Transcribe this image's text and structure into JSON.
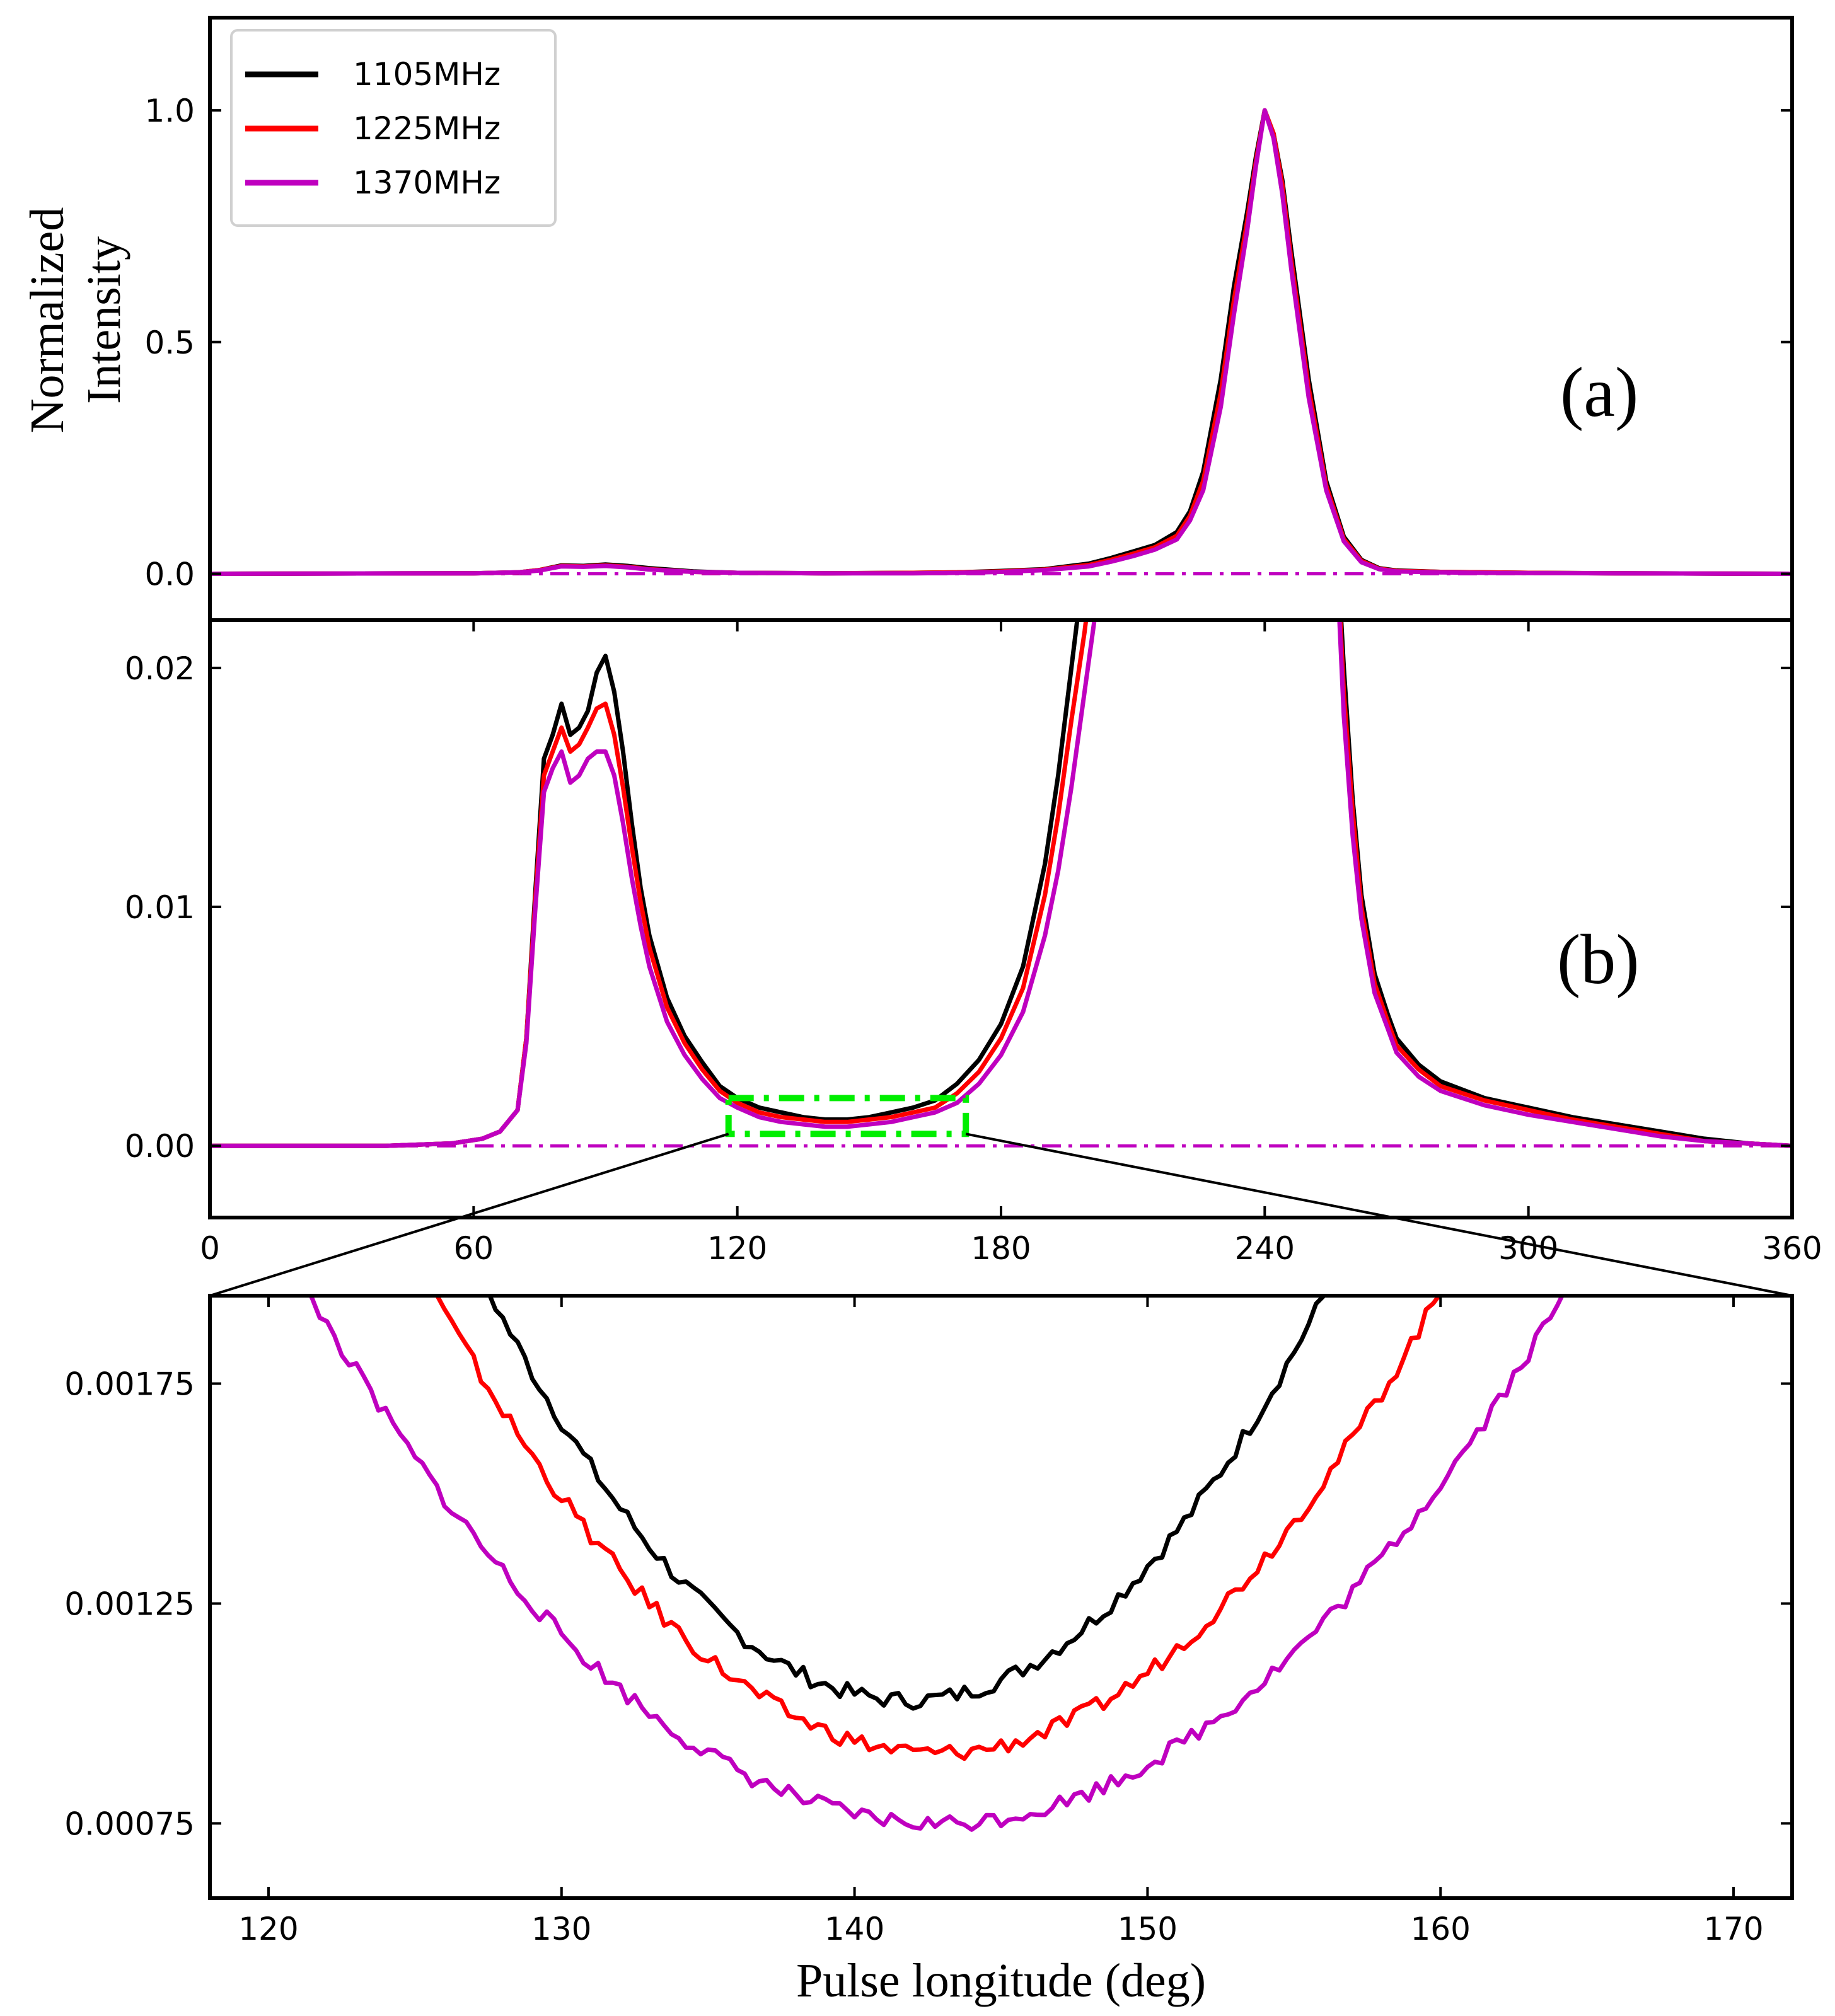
{
  "chart_data": {
    "type": "line",
    "legend": {
      "placement": "top-left",
      "entries": [
        {
          "label": "1105MHz",
          "color": "#000000"
        },
        {
          "label": "1225MHz",
          "color": "#ff0000"
        },
        {
          "label": "1370MHz",
          "color": "#bf00bf"
        }
      ]
    },
    "panels": [
      {
        "label": "(a)",
        "ylabel_line1": "Normalized",
        "ylabel_line2": "Intensity",
        "xlim": [
          0,
          360
        ],
        "ylim": [
          -0.1,
          1.2
        ],
        "yticks": [
          {
            "v": 0.0,
            "label": "0.0"
          },
          {
            "v": 0.5,
            "label": "0.5"
          },
          {
            "v": 1.0,
            "label": "1.0"
          }
        ],
        "baseline": 0.0,
        "series": [
          {
            "name": "1105MHz",
            "color": "#000000",
            "x": [
              0,
              60,
              70,
              75,
              80,
              85,
              90,
              95,
              100,
              110,
              120,
              140,
              160,
              170,
              180,
              190,
              200,
              205,
              210,
              215,
              220,
              223,
              226,
              230,
              233,
              236,
              238,
              240,
              242,
              244,
              246,
              250,
              254,
              258,
              262,
              266,
              270,
              280,
              290,
              300,
              320,
              340,
              360
            ],
            "y": [
              0,
              0.001,
              0.003,
              0.008,
              0.018,
              0.017,
              0.02,
              0.017,
              0.012,
              0.005,
              0.002,
              0.001,
              0.002,
              0.003,
              0.006,
              0.01,
              0.022,
              0.034,
              0.048,
              0.062,
              0.09,
              0.135,
              0.22,
              0.42,
              0.62,
              0.78,
              0.9,
              1.0,
              0.95,
              0.85,
              0.7,
              0.42,
              0.2,
              0.08,
              0.03,
              0.012,
              0.007,
              0.004,
              0.003,
              0.002,
              0.001,
              0.0005,
              0
            ]
          },
          {
            "name": "1225MHz",
            "color": "#ff0000",
            "x": [
              0,
              60,
              70,
              75,
              80,
              85,
              90,
              95,
              100,
              110,
              120,
              140,
              160,
              170,
              180,
              190,
              200,
              205,
              210,
              215,
              220,
              223,
              226,
              230,
              233,
              236,
              238,
              240,
              242,
              244,
              246,
              250,
              254,
              258,
              262,
              266,
              270,
              280,
              290,
              300,
              320,
              340,
              360
            ],
            "y": [
              0,
              0.001,
              0.003,
              0.008,
              0.017,
              0.016,
              0.018,
              0.015,
              0.01,
              0.004,
              0.002,
              0.001,
              0.002,
              0.003,
              0.005,
              0.009,
              0.019,
              0.03,
              0.043,
              0.057,
              0.082,
              0.125,
              0.2,
              0.39,
              0.59,
              0.76,
              0.89,
              1.0,
              0.95,
              0.84,
              0.68,
              0.4,
              0.19,
              0.075,
              0.028,
              0.011,
              0.006,
              0.004,
              0.003,
              0.002,
              0.001,
              0.0005,
              0
            ]
          },
          {
            "name": "1370MHz",
            "color": "#bf00bf",
            "x": [
              0,
              60,
              70,
              75,
              80,
              85,
              90,
              95,
              100,
              110,
              120,
              140,
              160,
              170,
              180,
              190,
              200,
              205,
              210,
              215,
              220,
              223,
              226,
              230,
              233,
              236,
              238,
              240,
              242,
              244,
              246,
              250,
              254,
              258,
              262,
              266,
              270,
              280,
              290,
              300,
              320,
              340,
              360
            ],
            "y": [
              0,
              0.001,
              0.003,
              0.007,
              0.016,
              0.015,
              0.017,
              0.014,
              0.009,
              0.004,
              0.002,
              0.001,
              0.001,
              0.002,
              0.004,
              0.008,
              0.016,
              0.026,
              0.038,
              0.052,
              0.074,
              0.115,
              0.18,
              0.36,
              0.56,
              0.74,
              0.88,
              1.0,
              0.94,
              0.82,
              0.66,
              0.38,
              0.18,
              0.07,
              0.025,
              0.01,
              0.005,
              0.003,
              0.002,
              0.0015,
              0.001,
              0.0005,
              0
            ]
          }
        ]
      },
      {
        "label": "(b)",
        "xlim": [
          0,
          360
        ],
        "ylim": [
          -0.003,
          0.022
        ],
        "yticks": [
          {
            "v": 0.0,
            "label": "0.00"
          },
          {
            "v": 0.01,
            "label": "0.01"
          },
          {
            "v": 0.02,
            "label": "0.02"
          }
        ],
        "xticks": [
          {
            "v": 0,
            "label": "0"
          },
          {
            "v": 60,
            "label": "60"
          },
          {
            "v": 120,
            "label": "120"
          },
          {
            "v": 180,
            "label": "180"
          },
          {
            "v": 240,
            "label": "240"
          },
          {
            "v": 300,
            "label": "300"
          },
          {
            "v": 360,
            "label": "360"
          }
        ],
        "baseline": 0.0,
        "zoom_box": {
          "x": [
            118,
            172
          ],
          "y": [
            0.0005,
            0.002
          ]
        },
        "series": [
          {
            "name": "1105MHz",
            "color": "#000000",
            "x": [
              0,
              40,
              55,
              62,
              66,
              70,
              72,
              74,
              76,
              78,
              80,
              82,
              84,
              86,
              88,
              90,
              92,
              94,
              96,
              98,
              100,
              104,
              108,
              112,
              116,
              120,
              125,
              130,
              135,
              140,
              145,
              150,
              155,
              160,
              165,
              170,
              175,
              180,
              185,
              190,
              193,
              196,
              199,
              202,
              255,
              258,
              260,
              262,
              265,
              268,
              270,
              275,
              280,
              290,
              300,
              310,
              320,
              330,
              340,
              350,
              360
            ],
            "y": [
              0,
              0,
              0.0001,
              0.0003,
              0.0006,
              0.0015,
              0.0045,
              0.0105,
              0.0162,
              0.0172,
              0.0185,
              0.0172,
              0.0175,
              0.0182,
              0.0198,
              0.0205,
              0.019,
              0.0165,
              0.0135,
              0.0108,
              0.0088,
              0.0062,
              0.0046,
              0.0035,
              0.0025,
              0.002,
              0.0016,
              0.0014,
              0.0012,
              0.0011,
              0.0011,
              0.0012,
              0.0014,
              0.0016,
              0.0019,
              0.0026,
              0.0036,
              0.0051,
              0.0075,
              0.0118,
              0.0155,
              0.02,
              0.0245,
              0.03,
              0.03,
              0.02,
              0.0145,
              0.0105,
              0.0072,
              0.0055,
              0.0045,
              0.0034,
              0.0027,
              0.002,
              0.0016,
              0.0012,
              0.0009,
              0.0006,
              0.0003,
              0.0001,
              0
            ]
          },
          {
            "name": "1225MHz",
            "color": "#ff0000",
            "x": [
              0,
              40,
              55,
              62,
              66,
              70,
              72,
              74,
              76,
              78,
              80,
              82,
              84,
              86,
              88,
              90,
              92,
              94,
              96,
              98,
              100,
              104,
              108,
              112,
              116,
              120,
              125,
              130,
              135,
              140,
              145,
              150,
              155,
              160,
              165,
              170,
              175,
              180,
              185,
              190,
              193,
              196,
              199,
              202,
              205,
              255,
              258,
              260,
              262,
              265,
              268,
              270,
              275,
              280,
              290,
              300,
              310,
              320,
              330,
              340,
              350,
              360
            ],
            "y": [
              0,
              0,
              0.0001,
              0.0003,
              0.0006,
              0.0015,
              0.0045,
              0.0102,
              0.0155,
              0.0165,
              0.0175,
              0.0165,
              0.0168,
              0.0175,
              0.0183,
              0.0185,
              0.0172,
              0.015,
              0.0125,
              0.0102,
              0.0083,
              0.0058,
              0.0043,
              0.0032,
              0.0023,
              0.0018,
              0.0014,
              0.0012,
              0.0011,
              0.001,
              0.001,
              0.0011,
              0.0012,
              0.0014,
              0.0016,
              0.0022,
              0.0031,
              0.0045,
              0.0066,
              0.0105,
              0.0138,
              0.0178,
              0.0215,
              0.026,
              0.03,
              0.03,
              0.019,
              0.014,
              0.01,
              0.0068,
              0.0052,
              0.0042,
              0.0032,
              0.0025,
              0.0019,
              0.0015,
              0.0011,
              0.0008,
              0.0005,
              0.0002,
              0.0001,
              0
            ]
          },
          {
            "name": "1370MHz",
            "color": "#bf00bf",
            "x": [
              0,
              40,
              55,
              62,
              66,
              70,
              72,
              74,
              76,
              78,
              80,
              82,
              84,
              86,
              88,
              90,
              92,
              94,
              96,
              98,
              100,
              104,
              108,
              112,
              116,
              120,
              125,
              130,
              135,
              140,
              145,
              150,
              155,
              160,
              165,
              170,
              175,
              180,
              185,
              190,
              193,
              196,
              199,
              202,
              205,
              208,
              255,
              258,
              260,
              262,
              265,
              268,
              270,
              275,
              280,
              290,
              300,
              310,
              320,
              330,
              340,
              350,
              360
            ],
            "y": [
              0,
              0,
              0.0001,
              0.0003,
              0.0006,
              0.0015,
              0.0043,
              0.0098,
              0.0148,
              0.0158,
              0.0165,
              0.0152,
              0.0155,
              0.0162,
              0.0165,
              0.0165,
              0.0155,
              0.0135,
              0.0112,
              0.0092,
              0.0075,
              0.0052,
              0.0038,
              0.0028,
              0.002,
              0.0016,
              0.0012,
              0.001,
              0.0009,
              0.0008,
              0.0008,
              0.0009,
              0.001,
              0.0012,
              0.0014,
              0.0018,
              0.0026,
              0.0038,
              0.0056,
              0.0088,
              0.0115,
              0.015,
              0.019,
              0.023,
              0.0265,
              0.03,
              0.03,
              0.018,
              0.013,
              0.0095,
              0.0064,
              0.0049,
              0.0039,
              0.0029,
              0.0023,
              0.0017,
              0.0013,
              0.001,
              0.0007,
              0.0004,
              0.0002,
              0.0001,
              0
            ]
          }
        ]
      },
      {
        "xlabel": "Pulse longitude (deg)",
        "xlim": [
          118,
          172
        ],
        "ylim": [
          0.00058,
          0.00195
        ],
        "yticks": [
          {
            "v": 0.00075,
            "label": "0.00075"
          },
          {
            "v": 0.00125,
            "label": "0.00125"
          },
          {
            "v": 0.00175,
            "label": "0.00175"
          }
        ],
        "xticks": [
          {
            "v": 120,
            "label": "120"
          },
          {
            "v": 130,
            "label": "130"
          },
          {
            "v": 140,
            "label": "140"
          },
          {
            "v": 150,
            "label": "150"
          },
          {
            "v": 160,
            "label": "160"
          },
          {
            "v": 170,
            "label": "170"
          }
        ],
        "series": [
          {
            "name": "1105MHz",
            "color": "#000000",
            "vertex": 141.8,
            "min": 0.00103,
            "k": 4.55e-06,
            "noise": 2e-05
          },
          {
            "name": "1225MHz",
            "color": "#ff0000",
            "vertex": 142.8,
            "min": 0.00091,
            "k": 3.55e-06,
            "noise": 2e-05
          },
          {
            "name": "1370MHz",
            "color": "#bf00bf",
            "vertex": 142.8,
            "min": 0.00075,
            "k": 2.62e-06,
            "noise": 2e-05
          }
        ]
      }
    ]
  }
}
